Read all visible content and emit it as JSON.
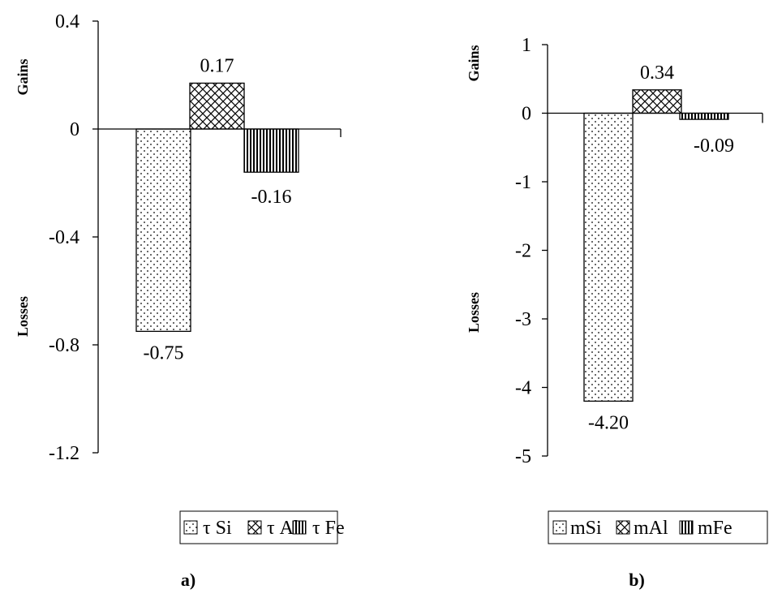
{
  "chart_data": [
    {
      "type": "bar",
      "panel_label": "a)",
      "categories": [
        "τ Si",
        "τ Al",
        "τ Fe"
      ],
      "series": [
        {
          "name": "τ Si",
          "value": -0.75,
          "label": "-0.75",
          "pattern": "dots"
        },
        {
          "name": "τ Al",
          "value": 0.17,
          "label": "0.17",
          "pattern": "crosshatch"
        },
        {
          "name": "τ Fe",
          "value": -0.16,
          "label": "-0.16",
          "pattern": "vertical"
        }
      ],
      "ylim": [
        -1.2,
        0.4
      ],
      "yticks": [
        0.4,
        0,
        -0.4,
        -0.8,
        -1.2
      ],
      "ytick_labels": [
        "0.4",
        "0",
        "-0.4",
        "-0.8",
        "-1.2"
      ],
      "side_labels": {
        "top": "Gains",
        "bottom": "Losses"
      },
      "grid": false,
      "legend_position": "bottom"
    },
    {
      "type": "bar",
      "panel_label": "b)",
      "categories": [
        "mSi",
        "mAl",
        "mFe"
      ],
      "series": [
        {
          "name": "mSi",
          "value": -4.2,
          "label": "-4.20",
          "pattern": "dots"
        },
        {
          "name": "mAl",
          "value": 0.34,
          "label": "0.34",
          "pattern": "crosshatch"
        },
        {
          "name": "mFe",
          "value": -0.09,
          "label": "-0.09",
          "pattern": "vertical"
        }
      ],
      "ylim": [
        -5,
        1
      ],
      "yticks": [
        1,
        0,
        -1,
        -2,
        -3,
        -4,
        -5
      ],
      "ytick_labels": [
        "1",
        "0",
        "-1",
        "-2",
        "-3",
        "-4",
        "-5"
      ],
      "side_labels": {
        "top": "Gains",
        "bottom": "Losses"
      },
      "grid": false,
      "legend_position": "bottom"
    }
  ]
}
